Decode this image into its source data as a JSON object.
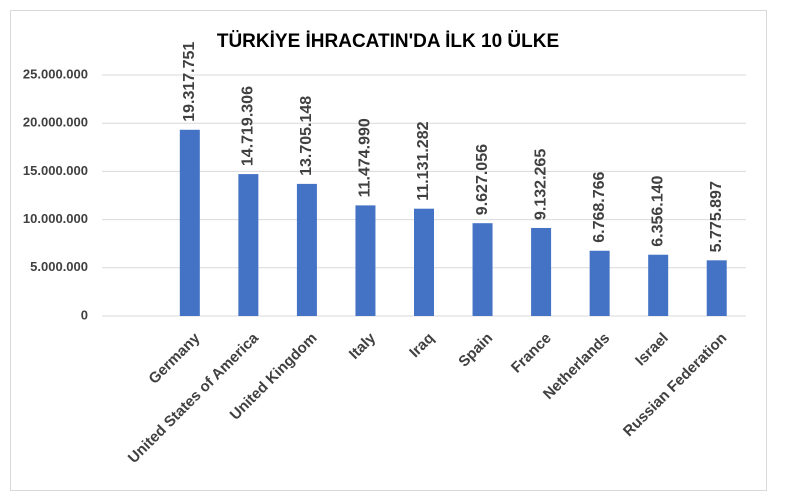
{
  "chart_data": {
    "type": "bar",
    "title": "TÜRKİYE İHRACATIN'DA İLK 10 ÜLKE",
    "categories": [
      null,
      "Germany",
      "United States of America",
      "United Kingdom",
      "Italy",
      "Iraq",
      "Spain",
      "France",
      "Netherlands",
      "Israel",
      "Russian Federation"
    ],
    "values": [
      null,
      19317751,
      14719306,
      13705148,
      11474990,
      11131282,
      9627056,
      9132265,
      6768766,
      6356140,
      5775897
    ],
    "value_labels": [
      null,
      "19.317.751",
      "14.719.306",
      "13.705.148",
      "11.474.990",
      "11.131.282",
      "9.627.056",
      "9.132.265",
      "6.768.766",
      "6.356.140",
      "5.775.897"
    ],
    "color": "#4472c4",
    "ylim": [
      0,
      25000000
    ],
    "yticks": [
      0,
      {
        "value": 5000000,
        "label": "5.000.000"
      },
      {
        "value": 10000000,
        "label": "10.000.000"
      },
      {
        "value": 15000000,
        "label": "15.000.000"
      },
      {
        "value": 20000000,
        "label": "20.000.000"
      },
      {
        "value": 25000000,
        "label": "25.000.000"
      }
    ],
    "grid": true
  }
}
